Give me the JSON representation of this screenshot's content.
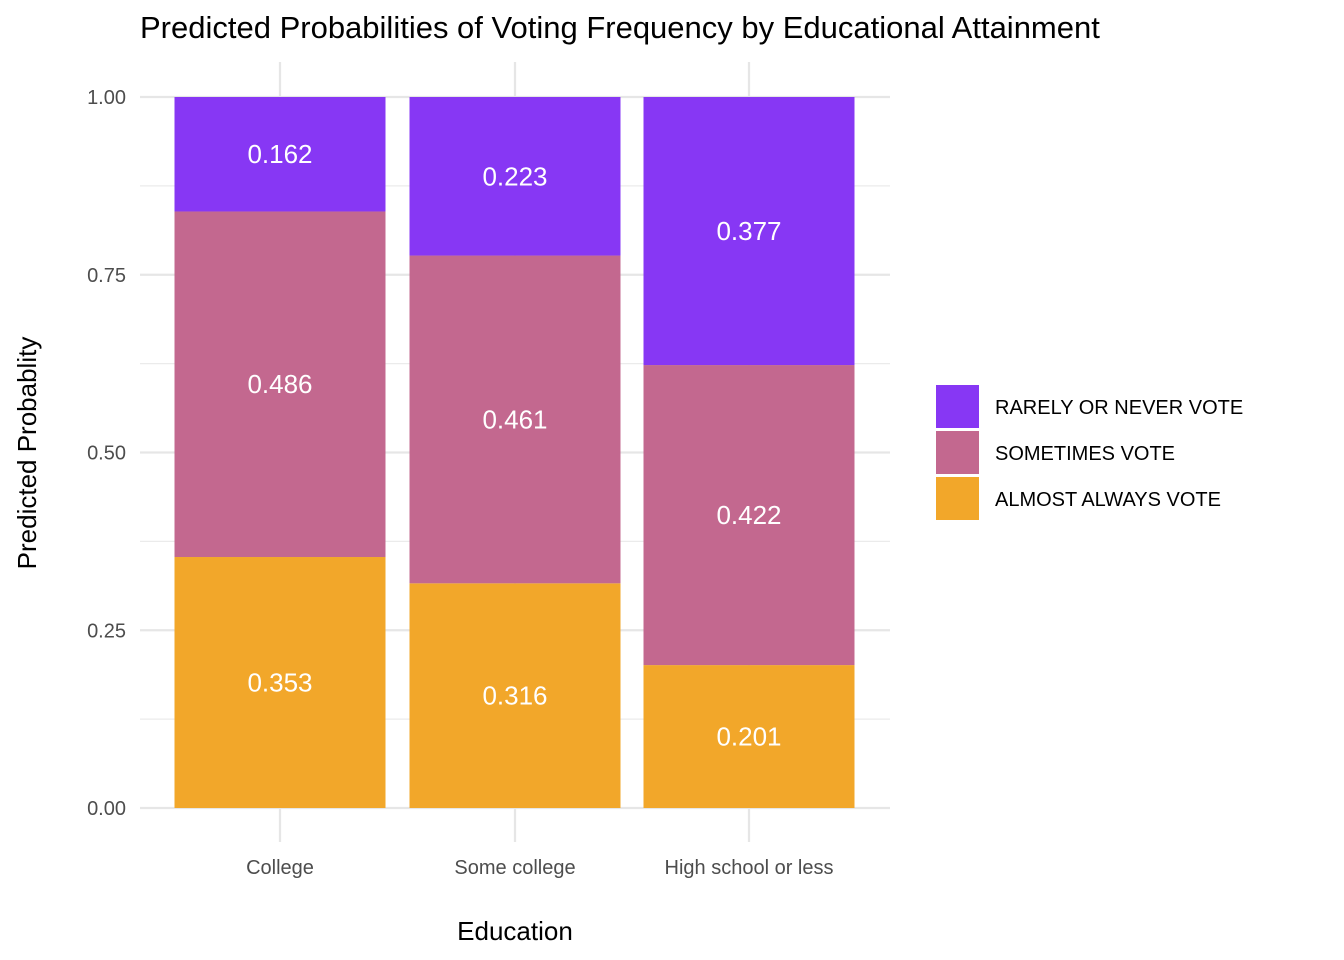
{
  "chart_data": {
    "type": "bar",
    "stacked": true,
    "title": "Predicted Probabilities of Voting Frequency by Educational Attainment",
    "xlabel": "Education",
    "ylabel": "Predicted Probablity",
    "categories": [
      "College",
      "Some college",
      "High school or less"
    ],
    "ylim": [
      0,
      1
    ],
    "yticks": [
      "0.00",
      "0.25",
      "0.50",
      "0.75",
      "1.00"
    ],
    "grid": true,
    "legend_position": "right",
    "series": [
      {
        "name": "ALMOST ALWAYS VOTE",
        "color": "#F2A72A",
        "values": [
          0.353,
          0.316,
          0.201
        ],
        "labels": [
          "0.353",
          "0.316",
          "0.201"
        ]
      },
      {
        "name": "SOMETIMES VOTE",
        "color": "#C3688F",
        "values": [
          0.486,
          0.461,
          0.422
        ],
        "labels": [
          "0.486",
          "0.461",
          "0.422"
        ]
      },
      {
        "name": "RARELY OR NEVER VOTE",
        "color": "#8737F4",
        "values": [
          0.162,
          0.223,
          0.377
        ],
        "labels": [
          "0.162",
          "0.223",
          "0.377"
        ]
      }
    ],
    "legend_order": [
      "RARELY OR NEVER VOTE",
      "SOMETIMES VOTE",
      "ALMOST ALWAYS VOTE"
    ]
  }
}
